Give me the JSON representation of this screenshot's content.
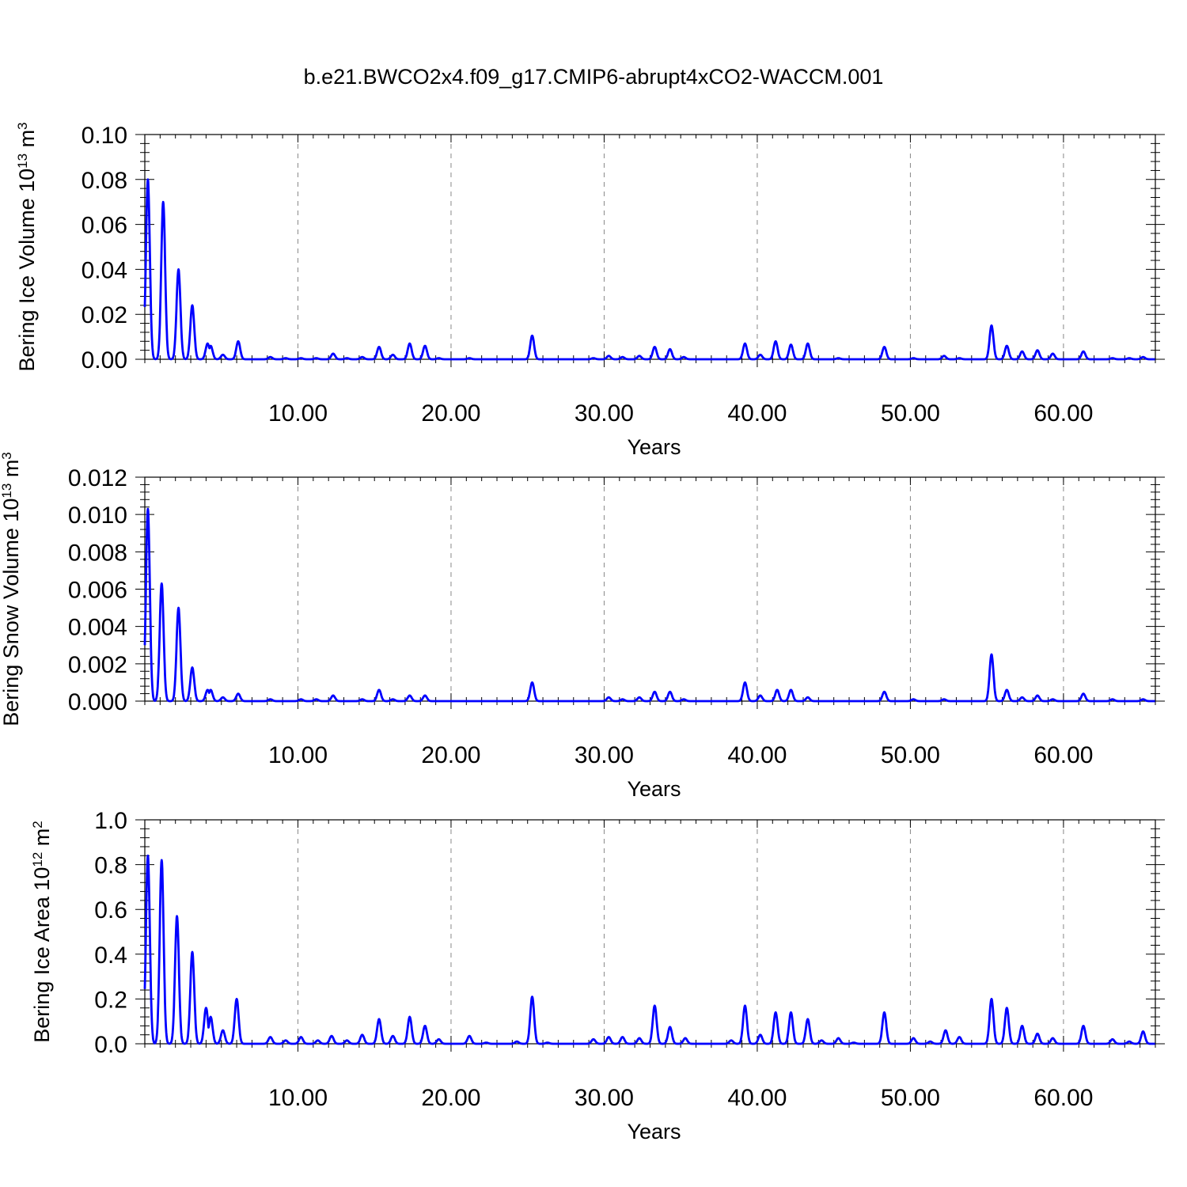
{
  "figure_title": "b.e21.BWCO2x4.f09_g17.CMIP6-abrupt4xCO2-WACCM.001",
  "colors": {
    "line": "#0000ff",
    "grid": "#888888"
  },
  "chart_data": [
    {
      "type": "line",
      "title": "b.e21.BWCO2x4.f09_g17.CMIP6-abrupt4xCO2-WACCM.001",
      "xlabel": "Years",
      "ylabel": "Bering Ice Volume 10",
      "ylabel_exp": "13",
      "ylabel_unit": " m",
      "ylabel_unit_exp": "3",
      "xlim": [
        0,
        66
      ],
      "ylim": [
        0,
        0.1
      ],
      "xticks": [
        10,
        20,
        30,
        40,
        50,
        60
      ],
      "xtick_labels": [
        "10.00",
        "20.00",
        "30.00",
        "40.00",
        "50.00",
        "60.00"
      ],
      "yticks": [
        0,
        0.02,
        0.04,
        0.06,
        0.08,
        0.1
      ],
      "ytick_labels": [
        "0.00",
        "0.02",
        "0.04",
        "0.06",
        "0.08",
        "0.10"
      ],
      "grid": "vertical dashed",
      "series": [
        {
          "peaks": [
            [
              0.2,
              0.08
            ],
            [
              1.2,
              0.07
            ],
            [
              2.2,
              0.04
            ],
            [
              3.1,
              0.024
            ],
            [
              4.1,
              0.007
            ],
            [
              4.3,
              0.006
            ],
            [
              5.1,
              0.002
            ],
            [
              6.1,
              0.008
            ],
            [
              8.2,
              0.001
            ],
            [
              9.2,
              0.0005
            ],
            [
              10.2,
              0.0005
            ],
            [
              11.2,
              0.0005
            ],
            [
              12.3,
              0.0025
            ],
            [
              13.2,
              0.0005
            ],
            [
              14.2,
              0.001
            ],
            [
              15.3,
              0.0055
            ],
            [
              16.2,
              0.002
            ],
            [
              17.3,
              0.007
            ],
            [
              18.3,
              0.006
            ],
            [
              19.2,
              0.0005
            ],
            [
              21.2,
              0.0005
            ],
            [
              25.3,
              0.0105
            ],
            [
              29.3,
              0.0005
            ],
            [
              30.3,
              0.0015
            ],
            [
              31.2,
              0.001
            ],
            [
              32.3,
              0.0015
            ],
            [
              33.3,
              0.0055
            ],
            [
              34.3,
              0.0045
            ],
            [
              35.2,
              0.001
            ],
            [
              39.2,
              0.007
            ],
            [
              40.2,
              0.002
            ],
            [
              41.2,
              0.008
            ],
            [
              42.2,
              0.0065
            ],
            [
              43.3,
              0.007
            ],
            [
              45.3,
              0.0005
            ],
            [
              48.3,
              0.0055
            ],
            [
              50.2,
              0.0005
            ],
            [
              52.2,
              0.0015
            ],
            [
              53.2,
              0.0005
            ],
            [
              55.3,
              0.015
            ],
            [
              56.3,
              0.006
            ],
            [
              57.3,
              0.0035
            ],
            [
              58.3,
              0.004
            ],
            [
              59.3,
              0.0025
            ],
            [
              61.3,
              0.0035
            ],
            [
              63.2,
              0.0005
            ],
            [
              64.3,
              0.0005
            ],
            [
              65.2,
              0.001
            ]
          ]
        }
      ]
    },
    {
      "type": "line",
      "xlabel": "Years",
      "ylabel": "Bering Snow Volume 10",
      "ylabel_exp": "13",
      "ylabel_unit": " m",
      "ylabel_unit_exp": "3",
      "xlim": [
        0,
        66
      ],
      "ylim": [
        0,
        0.012
      ],
      "xticks": [
        10,
        20,
        30,
        40,
        50,
        60
      ],
      "xtick_labels": [
        "10.00",
        "20.00",
        "30.00",
        "40.00",
        "50.00",
        "60.00"
      ],
      "yticks": [
        0,
        0.002,
        0.004,
        0.006,
        0.008,
        0.01,
        0.012
      ],
      "ytick_labels": [
        "0.000",
        "0.002",
        "0.004",
        "0.006",
        "0.008",
        "0.010",
        "0.012"
      ],
      "grid": "vertical dashed",
      "series": [
        {
          "peaks": [
            [
              0.2,
              0.0103
            ],
            [
              1.1,
              0.0063
            ],
            [
              2.2,
              0.005
            ],
            [
              3.1,
              0.0018
            ],
            [
              4.1,
              0.0006
            ],
            [
              4.3,
              0.0006
            ],
            [
              5.1,
              0.0002
            ],
            [
              6.1,
              0.0004
            ],
            [
              8.2,
              0.0001
            ],
            [
              10.2,
              0.0001
            ],
            [
              11.2,
              0.0001
            ],
            [
              12.3,
              0.0003
            ],
            [
              14.2,
              0.0001
            ],
            [
              15.3,
              0.0006
            ],
            [
              16.2,
              0.0001
            ],
            [
              17.3,
              0.0003
            ],
            [
              18.3,
              0.0003
            ],
            [
              25.3,
              0.001
            ],
            [
              30.3,
              0.0002
            ],
            [
              31.2,
              0.0001
            ],
            [
              32.3,
              0.0002
            ],
            [
              33.3,
              0.0005
            ],
            [
              34.3,
              0.0005
            ],
            [
              35.2,
              0.0001
            ],
            [
              39.2,
              0.001
            ],
            [
              40.2,
              0.0003
            ],
            [
              41.3,
              0.0006
            ],
            [
              42.2,
              0.0006
            ],
            [
              43.3,
              0.0002
            ],
            [
              48.3,
              0.0005
            ],
            [
              50.2,
              0.0001
            ],
            [
              52.2,
              0.0001
            ],
            [
              55.3,
              0.0025
            ],
            [
              56.3,
              0.0006
            ],
            [
              57.3,
              0.0002
            ],
            [
              58.3,
              0.0003
            ],
            [
              59.3,
              0.0001
            ],
            [
              61.3,
              0.0004
            ],
            [
              63.2,
              0.0001
            ],
            [
              65.2,
              0.0001
            ]
          ]
        }
      ]
    },
    {
      "type": "line",
      "xlabel": "Years",
      "ylabel": "Bering Ice Area 10",
      "ylabel_exp": "12",
      "ylabel_unit": " m",
      "ylabel_unit_exp": "2",
      "xlim": [
        0,
        66
      ],
      "ylim": [
        0,
        1.0
      ],
      "xticks": [
        10,
        20,
        30,
        40,
        50,
        60
      ],
      "xtick_labels": [
        "10.00",
        "20.00",
        "30.00",
        "40.00",
        "50.00",
        "60.00"
      ],
      "yticks": [
        0,
        0.2,
        0.4,
        0.6,
        0.8,
        1.0
      ],
      "ytick_labels": [
        "0.0",
        "0.2",
        "0.4",
        "0.6",
        "0.8",
        "1.0"
      ],
      "grid": "vertical dashed",
      "series": [
        {
          "peaks": [
            [
              0.2,
              0.84
            ],
            [
              1.1,
              0.82
            ],
            [
              2.1,
              0.57
            ],
            [
              3.1,
              0.41
            ],
            [
              4.0,
              0.16
            ],
            [
              4.3,
              0.12
            ],
            [
              5.1,
              0.06
            ],
            [
              6.0,
              0.2
            ],
            [
              8.2,
              0.03
            ],
            [
              9.2,
              0.015
            ],
            [
              10.2,
              0.03
            ],
            [
              11.3,
              0.015
            ],
            [
              12.2,
              0.035
            ],
            [
              13.2,
              0.015
            ],
            [
              14.2,
              0.04
            ],
            [
              15.3,
              0.11
            ],
            [
              16.2,
              0.035
            ],
            [
              17.3,
              0.12
            ],
            [
              18.3,
              0.08
            ],
            [
              19.2,
              0.02
            ],
            [
              21.2,
              0.035
            ],
            [
              22.3,
              0.005
            ],
            [
              24.3,
              0.01
            ],
            [
              25.3,
              0.21
            ],
            [
              26.3,
              0.005
            ],
            [
              29.3,
              0.02
            ],
            [
              30.3,
              0.03
            ],
            [
              31.2,
              0.03
            ],
            [
              32.3,
              0.025
            ],
            [
              33.3,
              0.17
            ],
            [
              34.3,
              0.075
            ],
            [
              35.3,
              0.025
            ],
            [
              38.3,
              0.015
            ],
            [
              39.2,
              0.17
            ],
            [
              40.2,
              0.04
            ],
            [
              41.2,
              0.14
            ],
            [
              42.2,
              0.14
            ],
            [
              43.3,
              0.11
            ],
            [
              44.2,
              0.015
            ],
            [
              45.3,
              0.025
            ],
            [
              46.3,
              0.005
            ],
            [
              48.3,
              0.14
            ],
            [
              50.2,
              0.025
            ],
            [
              51.3,
              0.01
            ],
            [
              52.3,
              0.06
            ],
            [
              53.2,
              0.03
            ],
            [
              55.3,
              0.2
            ],
            [
              56.3,
              0.16
            ],
            [
              57.3,
              0.08
            ],
            [
              58.3,
              0.045
            ],
            [
              59.3,
              0.025
            ],
            [
              61.3,
              0.08
            ],
            [
              63.2,
              0.02
            ],
            [
              64.3,
              0.01
            ],
            [
              65.2,
              0.055
            ]
          ]
        }
      ]
    }
  ]
}
